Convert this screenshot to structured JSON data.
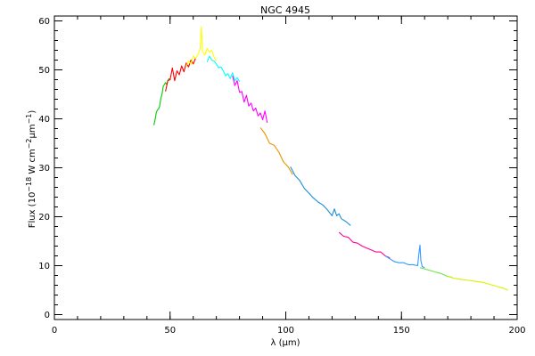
{
  "chart_data": {
    "type": "line",
    "title": "NGC 4945",
    "xlabel": "λ (μm)",
    "ylabel_parts": {
      "prefix": "Flux (10",
      "exp1": "−18",
      "middle1": " W cm",
      "exp2": "−2",
      "middle2": "μm",
      "exp3": "−1",
      "suffix": ")"
    },
    "xlim": [
      0,
      200
    ],
    "ylim": [
      -1,
      61
    ],
    "xticks": [
      0,
      50,
      100,
      150,
      200
    ],
    "yticks": [
      0,
      10,
      20,
      30,
      40,
      50,
      60
    ],
    "xminor_step": 10,
    "yminor_step": 2,
    "grid": false,
    "series": [
      {
        "color": "#00cc00",
        "x": [
          43.0,
          43.5,
          44.0,
          44.5,
          45.0,
          45.5,
          46.0,
          46.5,
          47.0,
          47.5,
          48.0,
          48.5,
          49.0,
          49.5,
          50.0
        ],
        "y": [
          38.7,
          39.8,
          41.2,
          41.8,
          42.0,
          42.6,
          44.2,
          45.0,
          46.6,
          47.0,
          47.4,
          47.0,
          47.8,
          48.2,
          48.0
        ]
      },
      {
        "color": "#ff0000",
        "x": [
          48.0,
          49.0,
          50.0,
          51.0,
          52.0,
          53.0,
          54.0,
          55.0,
          56.0,
          57.0,
          58.0,
          59.0,
          60.0,
          61.0
        ],
        "y": [
          45.6,
          47.8,
          48.0,
          50.4,
          47.8,
          49.8,
          49.0,
          50.8,
          49.6,
          51.4,
          50.6,
          52.0,
          51.2,
          52.4
        ]
      },
      {
        "color": "#ffff00",
        "x": [
          57.0,
          58.0,
          59.0,
          60.0,
          61.0,
          62.0,
          63.0,
          63.5,
          64.0,
          65.0,
          66.0,
          67.0,
          68.0,
          69.0,
          70.0
        ],
        "y": [
          50.8,
          51.8,
          51.2,
          52.8,
          52.4,
          53.0,
          54.4,
          58.8,
          53.8,
          53.0,
          54.4,
          53.6,
          54.0,
          52.6,
          51.8
        ]
      },
      {
        "color": "#00ffff",
        "x": [
          66.0,
          67.0,
          68.0,
          69.0,
          70.0,
          71.0,
          72.0,
          73.0,
          74.0,
          75.0,
          76.0,
          77.0,
          78.0,
          79.0,
          80.0
        ],
        "y": [
          51.6,
          52.8,
          52.0,
          51.8,
          51.2,
          50.4,
          50.6,
          49.8,
          48.8,
          49.2,
          48.2,
          49.4,
          47.8,
          48.4,
          47.6
        ]
      },
      {
        "color": "#ff00ff",
        "x": [
          77.0,
          78.0,
          79.0,
          80.0,
          81.0,
          82.0,
          83.0,
          84.0,
          85.0,
          86.0,
          87.0,
          88.0,
          89.0,
          90.0,
          91.0,
          92.0
        ],
        "y": [
          48.8,
          46.8,
          47.8,
          45.4,
          45.6,
          43.4,
          44.8,
          42.6,
          43.2,
          41.6,
          42.2,
          40.6,
          41.2,
          39.8,
          41.6,
          39.2
        ]
      },
      {
        "color": "#e69500",
        "x": [
          89.0,
          91.0,
          93.0,
          95.0,
          97.0,
          99.0,
          101.0,
          103.0
        ],
        "y": [
          38.2,
          37.0,
          35.0,
          34.6,
          33.2,
          31.2,
          30.2,
          28.6
        ]
      },
      {
        "color": "#1a8cd8",
        "x": [
          102.0,
          104.0,
          106.0,
          108.0,
          110.0,
          112.0,
          114.0,
          116.0,
          118.0,
          120.0,
          121.0,
          122.0,
          123.0,
          124.0,
          126.0,
          128.0
        ],
        "y": [
          30.2,
          28.4,
          27.4,
          25.8,
          24.8,
          23.8,
          23.0,
          22.4,
          21.4,
          20.2,
          21.6,
          20.2,
          20.6,
          19.6,
          19.0,
          18.2
        ]
      },
      {
        "color": "#ff0099",
        "x": [
          123.0,
          125.0,
          127.0,
          129.0,
          131.0,
          133.0,
          135.0,
          137.0,
          139.0,
          141.0,
          143.0,
          145.0
        ],
        "y": [
          16.8,
          16.0,
          15.8,
          14.8,
          14.6,
          14.0,
          13.6,
          13.2,
          12.8,
          12.8,
          12.0,
          11.6
        ]
      },
      {
        "color": "#3399ff",
        "x": [
          143.0,
          145.0,
          147.0,
          149.0,
          151.0,
          153.0,
          155.0,
          157.0,
          157.6,
          158.0,
          158.4,
          159.0,
          160.0
        ],
        "y": [
          12.0,
          11.4,
          10.8,
          10.6,
          10.6,
          10.2,
          10.2,
          10.0,
          12.8,
          14.2,
          11.0,
          9.8,
          9.6
        ]
      },
      {
        "color": "#66e64d",
        "x": [
          158.0,
          161.0,
          164.0,
          167.0,
          170.0,
          172.0
        ],
        "y": [
          9.6,
          9.2,
          8.8,
          8.4,
          7.8,
          7.6
        ]
      },
      {
        "color": "#d9f200",
        "x": [
          170.0,
          173.0,
          176.0,
          179.0,
          182.0,
          185.0,
          188.0,
          191.0,
          194.0,
          196.0
        ],
        "y": [
          7.8,
          7.4,
          7.2,
          7.0,
          6.8,
          6.6,
          6.2,
          5.8,
          5.4,
          5.0
        ]
      }
    ]
  }
}
